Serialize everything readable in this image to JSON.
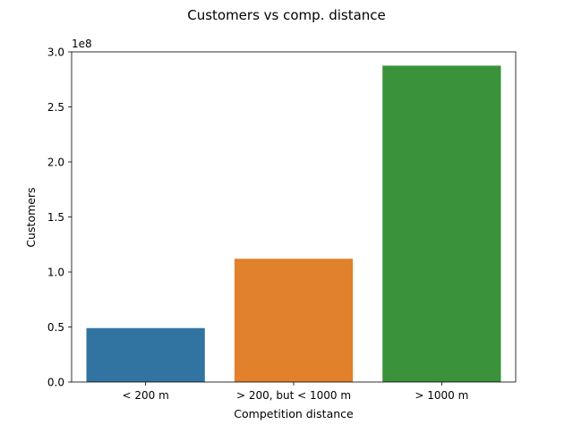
{
  "chart_data": {
    "type": "bar",
    "title": "Customers vs comp. distance",
    "xlabel": "Competition distance",
    "ylabel": "Customers",
    "offset_label": "1e8",
    "categories": [
      "< 200 m",
      "> 200, but < 1000 m",
      "> 1000 m"
    ],
    "values": [
      0.49,
      1.12,
      2.875
    ],
    "value_multiplier": 100000000,
    "ylim": [
      0,
      3.0
    ],
    "yticks": [
      0.0,
      0.5,
      1.0,
      1.5,
      2.0,
      2.5,
      3.0
    ],
    "ytick_labels": [
      "0.0",
      "0.5",
      "1.0",
      "1.5",
      "2.0",
      "2.5",
      "3.0"
    ],
    "colors": [
      "#3274a1",
      "#e1812c",
      "#3a923a"
    ],
    "grid": false,
    "legend": false
  }
}
